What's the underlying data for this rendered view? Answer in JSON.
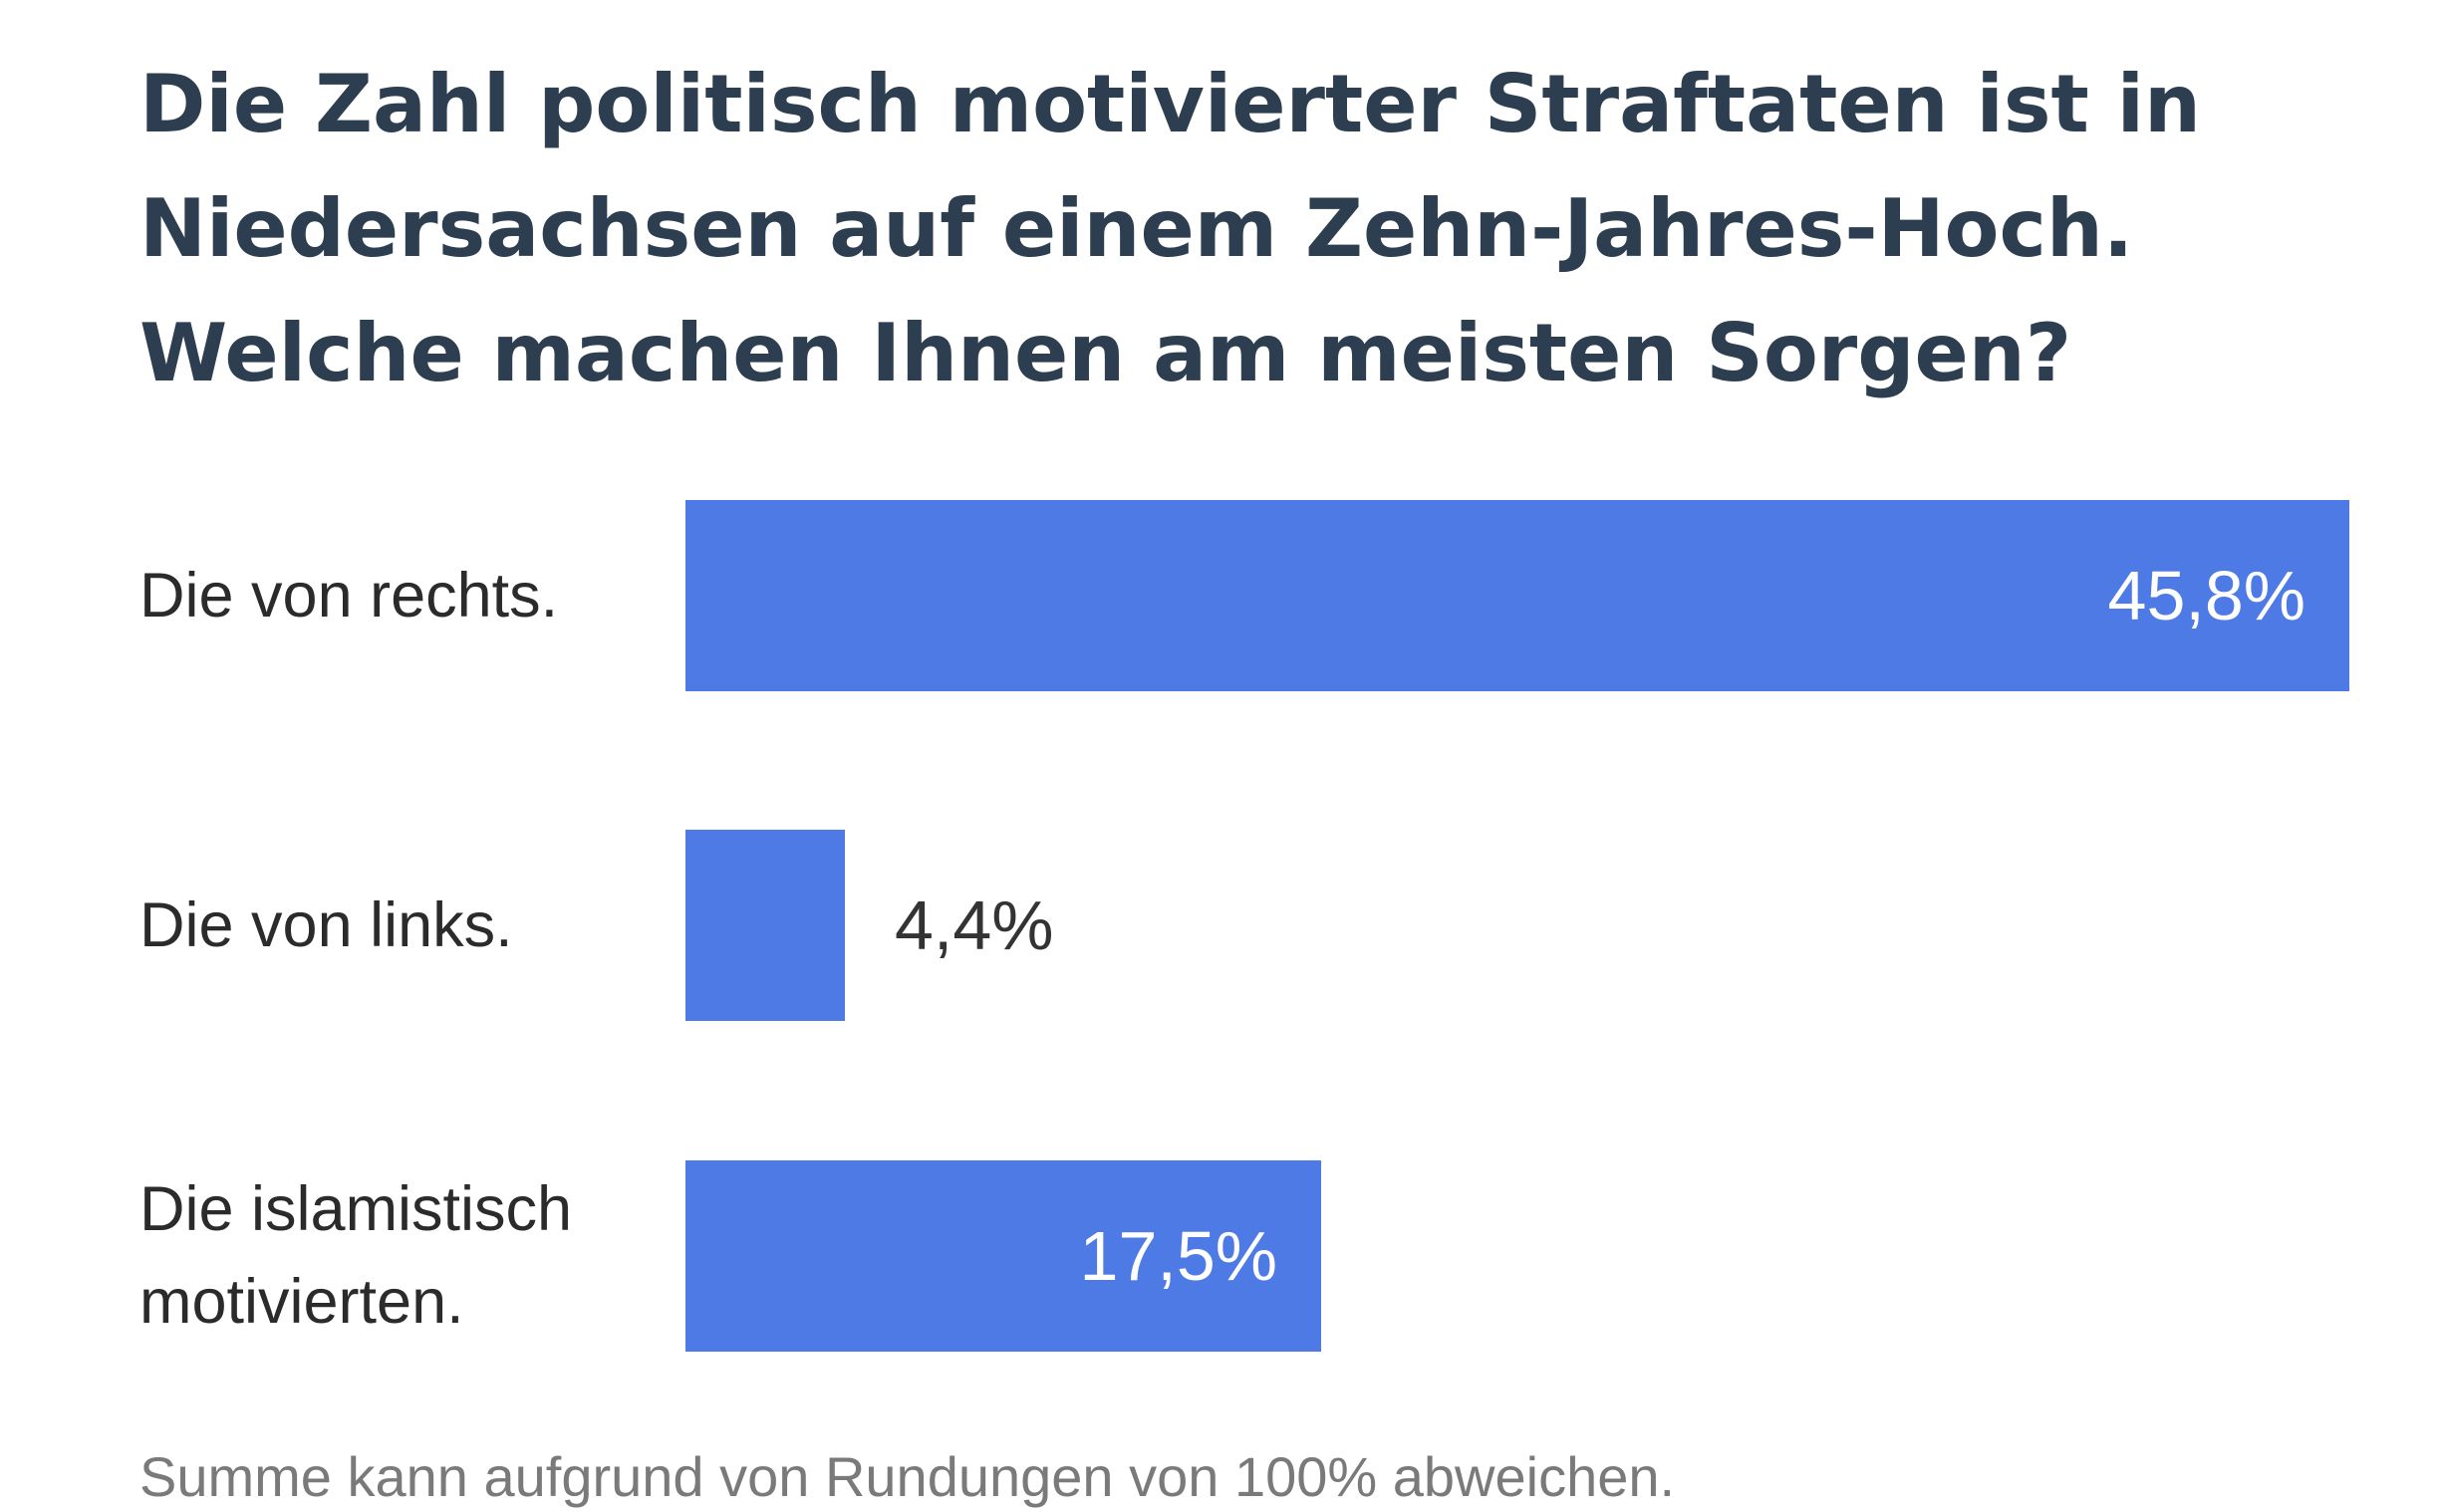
{
  "title_lines": [
    "Die Zahl politisch motivierter Straftaten ist in",
    "Niedersachsen auf einem Zehn-Jahres-Hoch.",
    "Welche machen Ihnen am meisten Sorgen?"
  ],
  "footnote": "Summe kann aufgrund von Rundungen von 100% abweichen.",
  "colors": {
    "bar": "#4e7ae6",
    "title": "#2c3e50",
    "value_inside": "#ffffff",
    "value_outside": "#333333"
  },
  "chart_data": {
    "type": "bar",
    "orientation": "horizontal",
    "title": "Die Zahl politisch motivierter Straftaten ist in Niedersachsen auf einem Zehn-Jahres-Hoch. Welche machen Ihnen am meisten Sorgen?",
    "categories": [
      "Die von rechts.",
      "Die von links.",
      "Die islamistisch motivierten."
    ],
    "category_lines": [
      [
        "Die von rechts."
      ],
      [
        "Die von links."
      ],
      [
        "Die islamistisch",
        "motivierten."
      ]
    ],
    "values": [
      45.8,
      4.4,
      17.5
    ],
    "value_labels": [
      "45,8%",
      "4,4%",
      "17,5%"
    ],
    "unit": "%",
    "xlim": [
      0,
      45.8
    ],
    "grid": false,
    "legend": "none"
  }
}
